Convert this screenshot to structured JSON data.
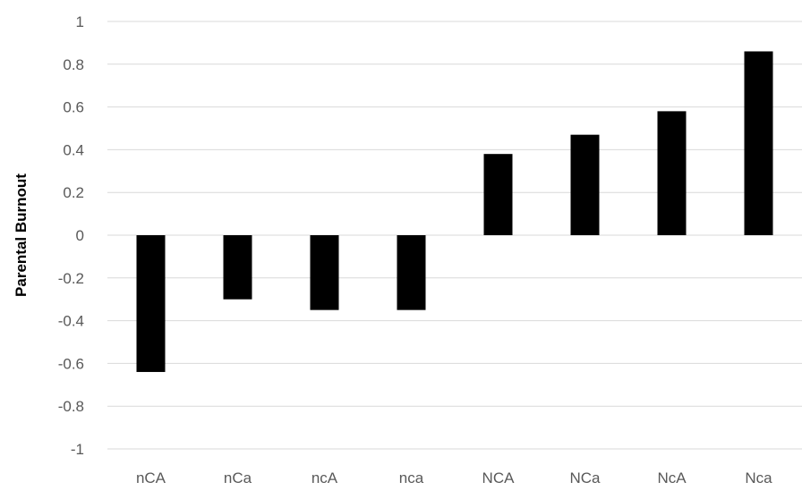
{
  "chart_data": {
    "type": "bar",
    "title": "",
    "xlabel": "",
    "ylabel": "Parental Burnout",
    "categories": [
      "nCA",
      "nCa",
      "ncA",
      "nca",
      "NCA",
      "NCa",
      "NcA",
      "Nca"
    ],
    "values": [
      -0.64,
      -0.3,
      -0.35,
      -0.35,
      0.38,
      0.47,
      0.58,
      0.86
    ],
    "ylim": [
      -1,
      1
    ],
    "yticks": [
      1,
      0.8,
      0.6,
      0.4,
      0.2,
      0,
      -0.2,
      -0.4,
      -0.6,
      -0.8,
      -1
    ],
    "ytick_labels": [
      "1",
      "0.8",
      "0.6",
      "0.4",
      "0.2",
      "0",
      "-0.2",
      "-0.4",
      "-0.6",
      "-0.8",
      "-1"
    ],
    "grid": true,
    "legend": "none",
    "colors": {
      "bar": "#000000",
      "grid": "#d9d9d9",
      "tick_text": "#595959"
    }
  }
}
